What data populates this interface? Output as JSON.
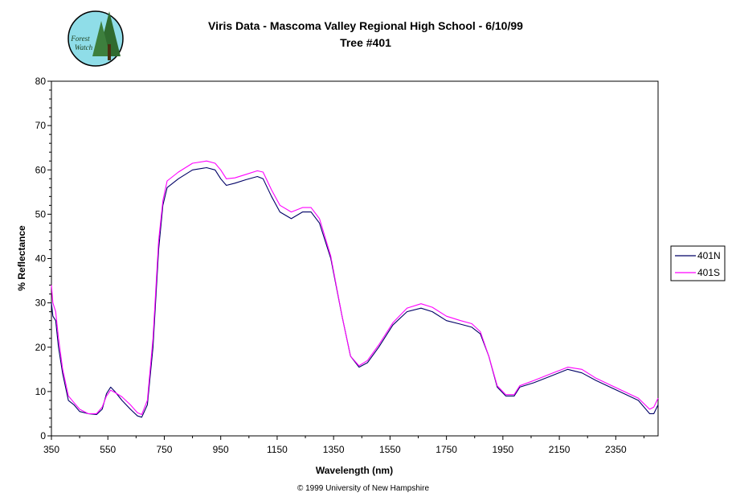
{
  "logo": {
    "line1": "Forest",
    "line2": "Watch"
  },
  "title_line1": "Viris Data - Mascoma Valley Regional High School - 6/10/99",
  "title_line2": "Tree #401",
  "copyright": "© 1999 University of New Hampshire",
  "chart_data": {
    "type": "line",
    "xlabel": "Wavelength (nm)",
    "ylabel": "% Reflectance",
    "xlim": [
      350,
      2500
    ],
    "ylim": [
      0,
      80
    ],
    "x_ticks": [
      350,
      550,
      750,
      950,
      1150,
      1350,
      1550,
      1750,
      1950,
      2150,
      2350
    ],
    "y_ticks": [
      0,
      10,
      20,
      30,
      40,
      50,
      60,
      70,
      80
    ],
    "grid": false,
    "legend_position": "right",
    "series": [
      {
        "name": "401N",
        "color": "#000066",
        "points": [
          [
            350,
            30
          ],
          [
            355,
            27
          ],
          [
            365,
            26
          ],
          [
            375,
            20
          ],
          [
            390,
            14
          ],
          [
            410,
            8
          ],
          [
            430,
            7
          ],
          [
            450,
            5.5
          ],
          [
            480,
            5
          ],
          [
            510,
            4.8
          ],
          [
            530,
            6
          ],
          [
            545,
            9.5
          ],
          [
            560,
            11
          ],
          [
            575,
            10
          ],
          [
            600,
            8
          ],
          [
            630,
            6
          ],
          [
            655,
            4.5
          ],
          [
            670,
            4.2
          ],
          [
            690,
            7
          ],
          [
            710,
            20
          ],
          [
            730,
            42
          ],
          [
            745,
            52
          ],
          [
            760,
            56
          ],
          [
            800,
            58
          ],
          [
            850,
            60
          ],
          [
            900,
            60.5
          ],
          [
            930,
            60
          ],
          [
            950,
            58
          ],
          [
            970,
            56.5
          ],
          [
            1000,
            57
          ],
          [
            1040,
            57.8
          ],
          [
            1080,
            58.5
          ],
          [
            1100,
            58
          ],
          [
            1130,
            54
          ],
          [
            1160,
            50.5
          ],
          [
            1200,
            49
          ],
          [
            1240,
            50.5
          ],
          [
            1270,
            50.5
          ],
          [
            1300,
            48
          ],
          [
            1340,
            40
          ],
          [
            1380,
            27
          ],
          [
            1410,
            18
          ],
          [
            1440,
            15.5
          ],
          [
            1470,
            16.5
          ],
          [
            1510,
            20
          ],
          [
            1560,
            25
          ],
          [
            1610,
            28
          ],
          [
            1660,
            28.8
          ],
          [
            1700,
            28
          ],
          [
            1750,
            26
          ],
          [
            1800,
            25.2
          ],
          [
            1840,
            24.5
          ],
          [
            1870,
            23
          ],
          [
            1900,
            18
          ],
          [
            1930,
            11
          ],
          [
            1960,
            9
          ],
          [
            1990,
            9
          ],
          [
            2010,
            11
          ],
          [
            2060,
            12
          ],
          [
            2120,
            13.5
          ],
          [
            2180,
            15
          ],
          [
            2230,
            14.2
          ],
          [
            2280,
            12.5
          ],
          [
            2330,
            11
          ],
          [
            2380,
            9.5
          ],
          [
            2430,
            8
          ],
          [
            2470,
            5
          ],
          [
            2485,
            5
          ],
          [
            2500,
            7
          ]
        ]
      },
      {
        "name": "401S",
        "color": "#ff00ff",
        "points": [
          [
            350,
            34
          ],
          [
            355,
            30
          ],
          [
            365,
            28
          ],
          [
            375,
            22
          ],
          [
            390,
            15
          ],
          [
            410,
            9
          ],
          [
            430,
            7.5
          ],
          [
            450,
            6
          ],
          [
            480,
            5
          ],
          [
            510,
            5
          ],
          [
            530,
            6.5
          ],
          [
            545,
            9
          ],
          [
            560,
            10.3
          ],
          [
            575,
            9.8
          ],
          [
            600,
            8.8
          ],
          [
            630,
            7
          ],
          [
            655,
            5.2
          ],
          [
            670,
            4.8
          ],
          [
            690,
            8
          ],
          [
            710,
            22
          ],
          [
            730,
            44
          ],
          [
            745,
            53
          ],
          [
            760,
            57.5
          ],
          [
            800,
            59.5
          ],
          [
            850,
            61.5
          ],
          [
            900,
            62
          ],
          [
            930,
            61.5
          ],
          [
            950,
            60
          ],
          [
            970,
            58
          ],
          [
            1000,
            58.2
          ],
          [
            1040,
            59
          ],
          [
            1080,
            59.8
          ],
          [
            1100,
            59.5
          ],
          [
            1130,
            55.5
          ],
          [
            1160,
            52
          ],
          [
            1200,
            50.5
          ],
          [
            1240,
            51.5
          ],
          [
            1270,
            51.5
          ],
          [
            1300,
            49
          ],
          [
            1340,
            40.5
          ],
          [
            1380,
            27
          ],
          [
            1410,
            18
          ],
          [
            1440,
            15.8
          ],
          [
            1470,
            17
          ],
          [
            1510,
            20.5
          ],
          [
            1560,
            25.5
          ],
          [
            1610,
            28.8
          ],
          [
            1660,
            29.8
          ],
          [
            1700,
            29
          ],
          [
            1750,
            27
          ],
          [
            1800,
            26
          ],
          [
            1840,
            25.3
          ],
          [
            1870,
            23.5
          ],
          [
            1900,
            18
          ],
          [
            1930,
            11.3
          ],
          [
            1960,
            9.3
          ],
          [
            1990,
            9.3
          ],
          [
            2010,
            11.3
          ],
          [
            2060,
            12.5
          ],
          [
            2120,
            14
          ],
          [
            2180,
            15.5
          ],
          [
            2230,
            15
          ],
          [
            2280,
            13
          ],
          [
            2330,
            11.5
          ],
          [
            2380,
            10
          ],
          [
            2430,
            8.5
          ],
          [
            2470,
            6
          ],
          [
            2485,
            6.5
          ],
          [
            2500,
            8.5
          ]
        ]
      }
    ]
  }
}
